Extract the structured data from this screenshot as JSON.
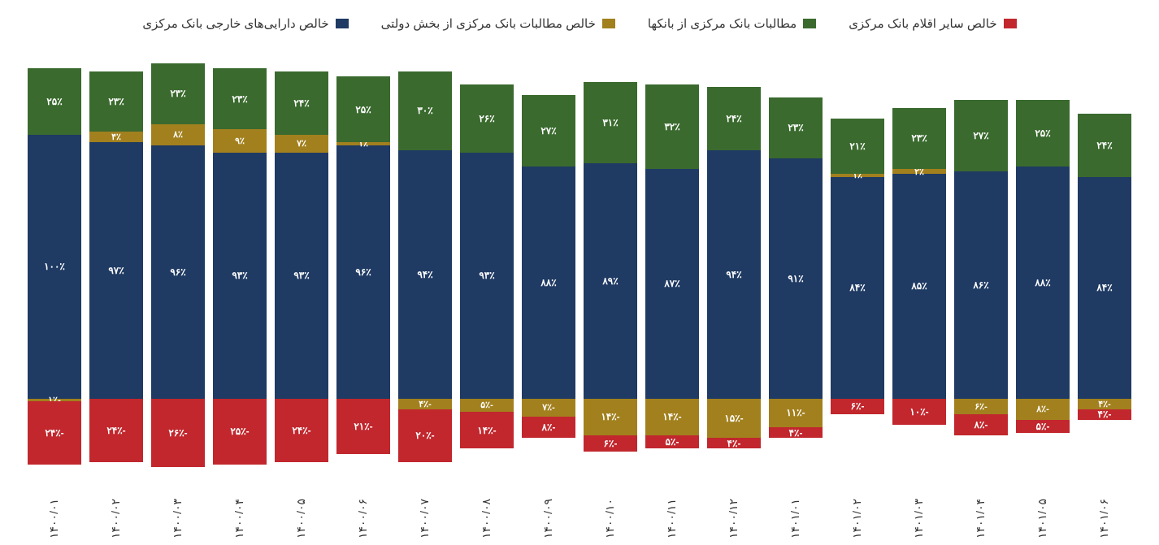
{
  "chart": {
    "type": "stacked-bar",
    "background_color": "#ffffff",
    "text_color": "#333333",
    "label_color": "#ffffff",
    "x_label_fontsize": 14,
    "legend_fontsize": 15,
    "bar_label_fontsize": 12,
    "legend": [
      {
        "name": "خالص دارایی‌های خارجی بانک مرکزی",
        "color": "#1f3a63"
      },
      {
        "name": "خالص مطالبات بانک مرکزی از بخش دولتی",
        "color": "#a2801e"
      },
      {
        "name": "مطالبات بانک مرکزی از بانکها",
        "color": "#3a6a2e"
      },
      {
        "name": "خالص سایر اقلام بانک مرکزی",
        "color": "#c1272d"
      }
    ],
    "categories": [
      "۱۴۰۰/۰۱",
      "۱۴۰۰/۰۲",
      "۱۴۰۰/۰۳",
      "۱۴۰۰/۰۴",
      "۱۴۰۰/۰۵",
      "۱۴۰۰/۰۶",
      "۱۴۰۰/۰۷",
      "۱۴۰۰/۰۸",
      "۱۴۰۰/۰۹",
      "۱۴۰۰/۱۰",
      "۱۴۰۰/۱۱",
      "۱۴۰۰/۱۲",
      "۱۴۰۱/۰۱",
      "۱۴۰۱/۰۲",
      "۱۴۰۱/۰۳",
      "۱۴۰۱/۰۴",
      "۱۴۰۱/۰۵",
      "۱۴۰۱/۰۶"
    ],
    "series": {
      "foreign_assets": {
        "color": "#1f3a63",
        "values": [
          100,
          97,
          96,
          93,
          93,
          96,
          94,
          93,
          88,
          89,
          87,
          94,
          91,
          84,
          85,
          86,
          88,
          84
        ]
      },
      "gov_claims": {
        "color": "#a2801e",
        "values": [
          -1,
          4,
          8,
          9,
          7,
          1,
          -4,
          -5,
          -7,
          -14,
          -14,
          -15,
          -11,
          1,
          2,
          -6,
          -8,
          -4
        ]
      },
      "bank_claims": {
        "color": "#3a6a2e",
        "values": [
          25,
          23,
          23,
          23,
          24,
          25,
          30,
          26,
          27,
          31,
          32,
          24,
          23,
          21,
          23,
          27,
          25,
          24
        ]
      },
      "other_items": {
        "color": "#c1272d",
        "values": [
          -24,
          -24,
          -26,
          -25,
          -24,
          -21,
          -20,
          -14,
          -8,
          -6,
          -5,
          -4,
          -4,
          -6,
          -10,
          -8,
          -5,
          -4
        ]
      }
    },
    "labels": {
      "foreign_assets": [
        "۱۰۰٪",
        "۹۷٪",
        "۹۶٪",
        "۹۳٪",
        "۹۳٪",
        "۹۶٪",
        "۹۴٪",
        "۹۳٪",
        "۸۸٪",
        "۸۹٪",
        "۸۷٪",
        "۹۴٪",
        "۹۱٪",
        "۸۴٪",
        "۸۵٪",
        "۸۶٪",
        "۸۸٪",
        "۸۴٪"
      ],
      "gov_claims": [
        "-۱٪",
        "۴٪",
        "۸٪",
        "۹٪",
        "۷٪",
        "۱٪",
        "-۴٪",
        "-۵٪",
        "-۷٪",
        "-۱۴٪",
        "-۱۴٪",
        "-۱۵٪",
        "-۱۱٪",
        "۱٪",
        "۲٪",
        "-۶٪",
        "-۸٪",
        "-۴٪"
      ],
      "bank_claims": [
        "۲۵٪",
        "۲۳٪",
        "۲۳٪",
        "۲۳٪",
        "۲۴٪",
        "۲۵٪",
        "۳۰٪",
        "۲۶٪",
        "۲۷٪",
        "۳۱٪",
        "۳۲٪",
        "۲۴٪",
        "۲۳٪",
        "۲۱٪",
        "۲۳٪",
        "۲۷٪",
        "۲۵٪",
        "۲۴٪"
      ],
      "other_items": [
        "-۲۴٪",
        "-۲۴٪",
        "-۲۶٪",
        "-۲۵٪",
        "-۲۴٪",
        "-۲۱٪",
        "-۲۰٪",
        "-۱۴٪",
        "-۸٪",
        "-۶٪",
        "-۵٪",
        "-۴٪",
        "-۴٪",
        "-۶٪",
        "-۱۰٪",
        "-۸٪",
        "-۵٪",
        "-۴٪"
      ]
    },
    "y_range": {
      "min": -30,
      "max": 130
    }
  }
}
